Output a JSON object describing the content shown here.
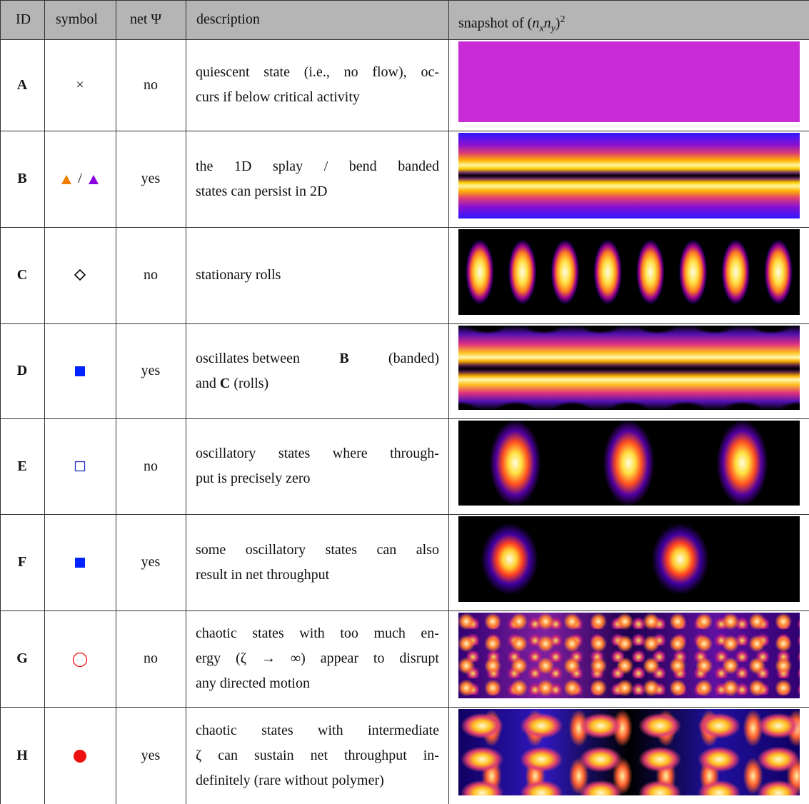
{
  "table": {
    "header": {
      "columns": [
        "ID",
        "symbol",
        "net Ψ",
        "description"
      ],
      "snapshot": {
        "prefix": "snapshot of ",
        "open": "(",
        "base1": "n",
        "sub1": "x",
        "base2": "n",
        "sub2": "y",
        "close": ")",
        "sup": "2"
      }
    },
    "rows": [
      {
        "id": "A",
        "symbol": "×",
        "marker": {
          "shape": "none"
        },
        "net": "no",
        "lines": [
          [
            "quiescent state (i.e., no flow), oc-"
          ],
          [
            "curs if below critical activity"
          ]
        ]
      },
      {
        "id": "B",
        "symbol": "/",
        "marker": {
          "shape": "triangle-pair",
          "colors": [
            "#f07c00",
            "#8a00e0"
          ]
        },
        "net": "yes",
        "lines": [
          [
            "the 1D splay / bend banded"
          ],
          [
            "states can persist in 2D"
          ]
        ]
      },
      {
        "id": "C",
        "marker": {
          "shape": "diamond",
          "color": "#000000",
          "filled": false
        },
        "net": "no",
        "lines": [
          [
            "stationary rolls"
          ]
        ]
      },
      {
        "id": "D",
        "marker": {
          "shape": "square",
          "color": "#0022ff",
          "filled": true
        },
        "net": "yes",
        "lines": [
          [
            "oscillates between ",
            "B",
            " (banded)"
          ],
          [
            "and ",
            "C",
            " (rolls)"
          ]
        ],
        "bold": [
          [
            0,
            1
          ],
          [
            1,
            1
          ]
        ]
      },
      {
        "id": "E",
        "marker": {
          "shape": "square",
          "color": "#2233cc",
          "filled": false
        },
        "net": "no",
        "lines": [
          [
            "oscillatory states where through-"
          ],
          [
            "put is precisely zero"
          ]
        ]
      },
      {
        "id": "F",
        "marker": {
          "shape": "square",
          "color": "#0022ff",
          "filled": true
        },
        "net": "yes",
        "lines": [
          [
            "some oscillatory states can also"
          ],
          [
            "result in net throughput"
          ]
        ]
      },
      {
        "id": "G",
        "marker": {
          "shape": "circle",
          "color": "#ee1111",
          "filled": false
        },
        "net": "no",
        "lines": [
          [
            "chaotic states with too much en-"
          ],
          [
            "ergy (ζ → ∞) appear to disrupt"
          ],
          [
            "any directed motion"
          ]
        ]
      },
      {
        "id": "H",
        "marker": {
          "shape": "circle",
          "color": "#ee1111",
          "filled": true
        },
        "net": "yes",
        "lines": [
          [
            "chaotic states with intermediate"
          ],
          [
            "ζ can sustain net throughput in-"
          ],
          [
            "definitely (rare without polymer)"
          ]
        ]
      }
    ]
  }
}
